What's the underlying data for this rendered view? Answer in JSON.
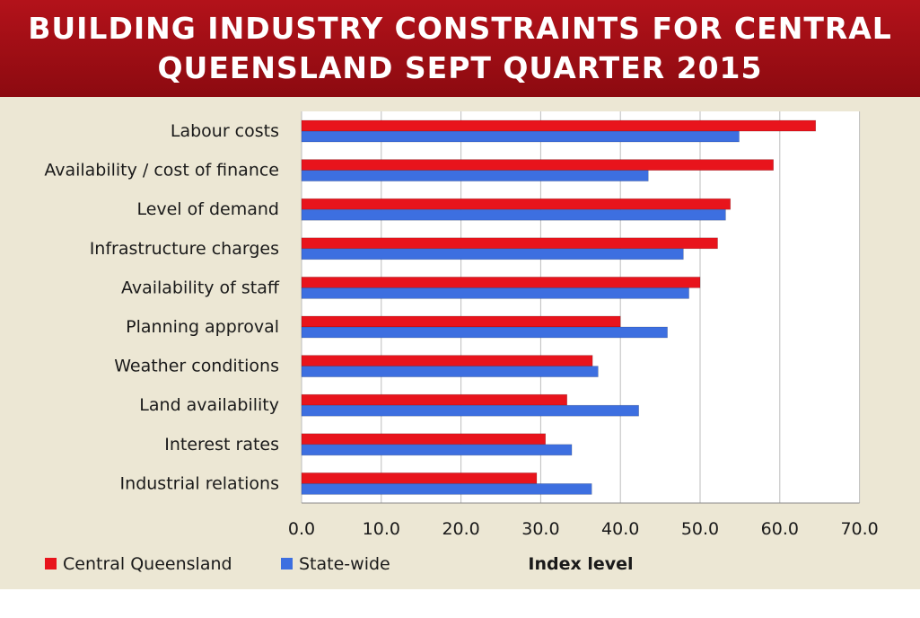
{
  "chart_data": {
    "type": "bar",
    "orientation": "horizontal",
    "title": "BUILDING INDUSTRY CONSTRAINTS FOR CENTRAL\nQUEENSLAND  SEPT QUARTER 2015",
    "categories": [
      "Labour costs",
      "Availability / cost of finance",
      "Level of demand",
      "Infrastructure charges",
      "Availability of staff",
      "Planning approval",
      "Weather conditions",
      "Land availability",
      "Interest rates",
      "Industrial relations"
    ],
    "series": [
      {
        "name": "Central Queensland",
        "color": "#e8141c",
        "values": [
          64.5,
          59.2,
          53.8,
          52.2,
          50.0,
          40.0,
          36.5,
          33.3,
          30.6,
          29.5
        ]
      },
      {
        "name": "State-wide",
        "color": "#3d6fe0",
        "values": [
          54.9,
          43.5,
          53.2,
          47.9,
          48.6,
          45.9,
          37.2,
          42.3,
          33.9,
          36.4
        ]
      }
    ],
    "xlabel": "Index level",
    "ylabel": "",
    "xlim": [
      0,
      70
    ],
    "xticks": [
      "0.0",
      "10.0",
      "20.0",
      "30.0",
      "40.0",
      "50.0",
      "60.0",
      "70.0"
    ],
    "grid": true,
    "legend": "bottom-left"
  }
}
